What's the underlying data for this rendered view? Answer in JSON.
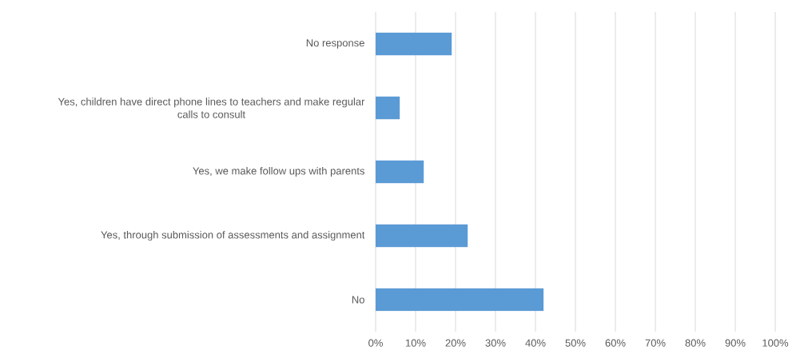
{
  "chart_data": {
    "type": "bar",
    "orientation": "horizontal",
    "categories": [
      "No response",
      "Yes, children have direct phone lines to teachers and make regular calls to consult",
      "Yes, we make follow ups with parents",
      "Yes, through submission of assessments and assignment",
      "No"
    ],
    "values": [
      19,
      6,
      12,
      23,
      42
    ],
    "color": "#5b9bd5",
    "xlim": [
      0,
      100
    ],
    "xticks": [
      {
        "value": 0,
        "label": "0%"
      },
      {
        "value": 10,
        "label": "10%"
      },
      {
        "value": 20,
        "label": "20%"
      },
      {
        "value": 30,
        "label": "30%"
      },
      {
        "value": 40,
        "label": "40%"
      },
      {
        "value": 50,
        "label": "50%"
      },
      {
        "value": 60,
        "label": "60%"
      },
      {
        "value": 70,
        "label": "70%"
      },
      {
        "value": 80,
        "label": "80%"
      },
      {
        "value": 90,
        "label": "90%"
      },
      {
        "value": 100,
        "label": "100%"
      }
    ],
    "grid": "x"
  }
}
